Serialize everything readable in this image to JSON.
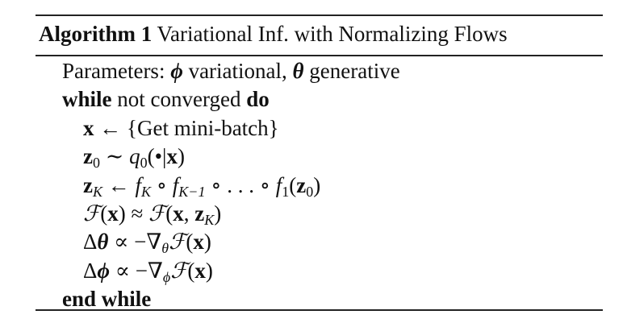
{
  "algorithm": {
    "label": "Algorithm 1",
    "title": "Variational Inf. with Normalizing Flows",
    "lines": [
      {
        "indent": 1,
        "parts": [
          {
            "t": "Parameters: "
          },
          {
            "t": "ϕ",
            "s": "bi"
          },
          {
            "t": " variational, "
          },
          {
            "t": "θ",
            "s": "bi"
          },
          {
            "t": " generative"
          }
        ]
      },
      {
        "indent": 1,
        "parts": [
          {
            "t": "while",
            "s": "kw"
          },
          {
            "t": " not converged "
          },
          {
            "t": "do",
            "s": "kw"
          }
        ]
      },
      {
        "indent": 2,
        "parts": [
          {
            "t": "x",
            "s": "vec"
          },
          {
            "t": " ← {Get mini-batch}"
          }
        ]
      },
      {
        "indent": 2,
        "parts": [
          {
            "t": "z",
            "s": "vec"
          },
          {
            "t": "0",
            "s": "sub"
          },
          {
            "t": " ∼ "
          },
          {
            "t": "q",
            "s": "it"
          },
          {
            "t": "0",
            "s": "sub"
          },
          {
            "t": "(•|"
          },
          {
            "t": "x",
            "s": "vec"
          },
          {
            "t": ")"
          }
        ]
      },
      {
        "indent": 2,
        "parts": [
          {
            "t": "z",
            "s": "vec"
          },
          {
            "t": "K",
            "s": "subi"
          },
          {
            "t": " ← "
          },
          {
            "t": "f",
            "s": "it"
          },
          {
            "t": "K",
            "s": "subi"
          },
          {
            "t": " ∘ "
          },
          {
            "t": "f",
            "s": "it"
          },
          {
            "t": "K−1",
            "s": "subi"
          },
          {
            "t": " ∘ . . . ∘ "
          },
          {
            "t": "f",
            "s": "it"
          },
          {
            "t": "1",
            "s": "sub"
          },
          {
            "t": "("
          },
          {
            "t": "z",
            "s": "vec"
          },
          {
            "t": "0",
            "s": "sub"
          },
          {
            "t": ")"
          }
        ]
      },
      {
        "indent": 2,
        "parts": [
          {
            "t": "ℱ",
            "s": "cal"
          },
          {
            "t": "("
          },
          {
            "t": "x",
            "s": "vec"
          },
          {
            "t": ") ≈ "
          },
          {
            "t": "ℱ",
            "s": "cal"
          },
          {
            "t": "("
          },
          {
            "t": "x",
            "s": "vec"
          },
          {
            "t": ", "
          },
          {
            "t": "z",
            "s": "vec"
          },
          {
            "t": "K",
            "s": "subi"
          },
          {
            "t": ")"
          }
        ]
      },
      {
        "indent": 2,
        "parts": [
          {
            "t": "Δ"
          },
          {
            "t": "θ",
            "s": "bi"
          },
          {
            "t": " ∝ −∇"
          },
          {
            "t": "θ",
            "s": "subi"
          },
          {
            "t": "ℱ",
            "s": "cal"
          },
          {
            "t": "("
          },
          {
            "t": "x",
            "s": "vec"
          },
          {
            "t": ")"
          }
        ]
      },
      {
        "indent": 2,
        "parts": [
          {
            "t": "Δ"
          },
          {
            "t": "ϕ",
            "s": "bi"
          },
          {
            "t": " ∝ −∇"
          },
          {
            "t": "ϕ",
            "s": "subi"
          },
          {
            "t": "ℱ",
            "s": "cal"
          },
          {
            "t": "("
          },
          {
            "t": "x",
            "s": "vec"
          },
          {
            "t": ")"
          }
        ]
      },
      {
        "indent": 1,
        "parts": [
          {
            "t": "end while",
            "s": "kw"
          }
        ]
      }
    ]
  }
}
